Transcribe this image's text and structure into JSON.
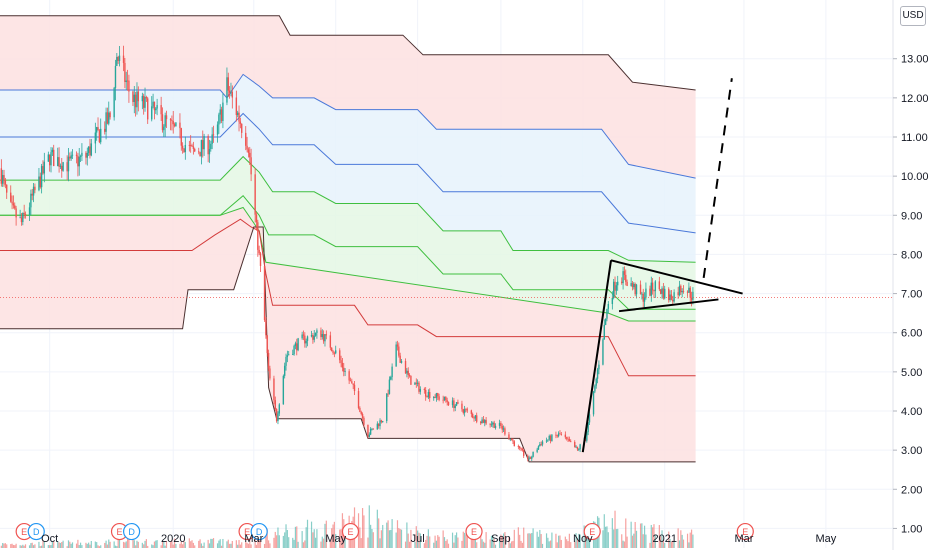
{
  "currency": "USD",
  "colors": {
    "bull": "#26a69a",
    "bear": "#ef5350",
    "band_red_fill": "#fde1e1",
    "band_blue_fill": "#e6f2fc",
    "band_green_fill": "#e4f7e4",
    "line_dark": "#4a2f2f",
    "line_blue": "#4a78d9",
    "line_green": "#3fbf3f",
    "line_red": "#d33b3b",
    "pattern_line": "#000000",
    "current_price_line": "#ef5350",
    "grid": "#f0f3fa"
  },
  "chart_data": {
    "type": "candlestick",
    "title": "",
    "xlabel": "",
    "ylabel": "",
    "y_unit": "USD",
    "ylim": [
      0.5,
      14.5
    ],
    "y_ticks": [
      "1.00",
      "2.00",
      "3.00",
      "4.00",
      "5.00",
      "6.00",
      "7.00",
      "8.00",
      "9.00",
      "10.00",
      "11.00",
      "12.00",
      "13.00"
    ],
    "y_tick_values": [
      1,
      2,
      3,
      4,
      5,
      6,
      7,
      8,
      9,
      10,
      11,
      12,
      13
    ],
    "x_ticks": [
      "Oct",
      "2020",
      "Mar",
      "May",
      "Jul",
      "Sep",
      "Nov",
      "2021",
      "Mar",
      "May"
    ],
    "x_tick_dates": [
      "2019-10-01",
      "2020-01-01",
      "2020-03-01",
      "2020-05-01",
      "2020-07-01",
      "2020-09-01",
      "2020-11-01",
      "2021-01-01",
      "2021-03-01",
      "2021-05-01"
    ],
    "xlim": [
      "2019-08-25",
      "2021-06-20"
    ],
    "price_path": [
      [
        "2019-08-25",
        10.2
      ],
      [
        "2019-09-01",
        9.2
      ],
      [
        "2019-09-10",
        8.8
      ],
      [
        "2019-09-20",
        9.6
      ],
      [
        "2019-10-01",
        10.5
      ],
      [
        "2019-10-15",
        10.3
      ],
      [
        "2019-10-28",
        10.5
      ],
      [
        "2019-11-05",
        11.0
      ],
      [
        "2019-11-15",
        11.5
      ],
      [
        "2019-11-20",
        13.1
      ],
      [
        "2019-12-01",
        12.0
      ],
      [
        "2019-12-15",
        11.7
      ],
      [
        "2020-01-01",
        11.2
      ],
      [
        "2020-01-15",
        10.6
      ],
      [
        "2020-02-01",
        10.9
      ],
      [
        "2020-02-10",
        12.3
      ],
      [
        "2020-02-20",
        11.4
      ],
      [
        "2020-02-26",
        10.8
      ],
      [
        "2020-03-01",
        9.3
      ],
      [
        "2020-03-06",
        7.6
      ],
      [
        "2020-03-12",
        5.0
      ],
      [
        "2020-03-18",
        3.8
      ],
      [
        "2020-03-25",
        5.4
      ],
      [
        "2020-04-05",
        5.8
      ],
      [
        "2020-04-20",
        6.0
      ],
      [
        "2020-05-01",
        5.5
      ],
      [
        "2020-05-15",
        4.5
      ],
      [
        "2020-05-25",
        3.4
      ],
      [
        "2020-06-05",
        3.8
      ],
      [
        "2020-06-15",
        5.6
      ],
      [
        "2020-06-25",
        4.8
      ],
      [
        "2020-07-05",
        4.5
      ],
      [
        "2020-07-20",
        4.3
      ],
      [
        "2020-08-01",
        4.1
      ],
      [
        "2020-08-15",
        3.8
      ],
      [
        "2020-09-01",
        3.6
      ],
      [
        "2020-09-15",
        3.0
      ],
      [
        "2020-09-22",
        2.75
      ],
      [
        "2020-10-01",
        3.2
      ],
      [
        "2020-10-15",
        3.4
      ],
      [
        "2020-10-28",
        3.0
      ],
      [
        "2020-11-03",
        3.3
      ],
      [
        "2020-11-10",
        4.6
      ],
      [
        "2020-11-20",
        6.8
      ],
      [
        "2020-11-28",
        7.5
      ],
      [
        "2020-12-05",
        7.3
      ],
      [
        "2020-12-15",
        6.9
      ],
      [
        "2020-12-25",
        7.2
      ],
      [
        "2021-01-05",
        6.9
      ],
      [
        "2021-01-15",
        7.2
      ],
      [
        "2021-01-24",
        6.85
      ]
    ],
    "volume_path": [
      [
        "2019-08-25",
        0.3
      ],
      [
        "2019-11-20",
        0.45
      ],
      [
        "2020-02-10",
        0.5
      ],
      [
        "2020-03-01",
        0.6
      ],
      [
        "2020-03-15",
        1.1
      ],
      [
        "2020-05-01",
        1.6
      ],
      [
        "2020-05-20",
        2.3
      ],
      [
        "2020-06-10",
        1.7
      ],
      [
        "2020-07-15",
        0.9
      ],
      [
        "2020-09-01",
        0.75
      ],
      [
        "2020-09-22",
        1.2
      ],
      [
        "2020-10-15",
        0.7
      ],
      [
        "2020-11-10",
        1.5
      ],
      [
        "2020-11-20",
        2.0
      ],
      [
        "2020-12-10",
        1.3
      ],
      [
        "2021-01-24",
        0.9
      ]
    ],
    "bands": [
      {
        "name": "",
        "color_key": "line_dark",
        "path": [
          [
            "2019-08-25",
            14.1
          ],
          [
            "2020-03-20",
            14.1
          ],
          [
            "2020-03-28",
            13.6
          ],
          [
            "2020-06-20",
            13.6
          ],
          [
            "2020-07-05",
            13.1
          ],
          [
            "2020-11-20",
            13.1
          ],
          [
            "2020-12-08",
            12.4
          ],
          [
            "2021-01-24",
            12.2
          ]
        ]
      },
      {
        "name": "",
        "color_key": "line_blue",
        "path": [
          [
            "2019-08-25",
            12.2
          ],
          [
            "2020-02-05",
            12.2
          ],
          [
            "2020-02-10",
            12.0
          ],
          [
            "2020-02-22",
            12.6
          ],
          [
            "2020-03-05",
            12.3
          ],
          [
            "2020-03-15",
            12.0
          ],
          [
            "2020-04-15",
            12.0
          ],
          [
            "2020-05-01",
            11.7
          ],
          [
            "2020-07-01",
            11.7
          ],
          [
            "2020-07-15",
            11.2
          ],
          [
            "2020-11-15",
            11.2
          ],
          [
            "2020-12-05",
            10.3
          ],
          [
            "2021-01-24",
            9.95
          ]
        ]
      },
      {
        "name": "",
        "color_key": "line_blue",
        "path": [
          [
            "2019-08-25",
            11.0
          ],
          [
            "2020-02-05",
            11.0
          ],
          [
            "2020-02-22",
            11.6
          ],
          [
            "2020-03-05",
            11.2
          ],
          [
            "2020-03-15",
            10.8
          ],
          [
            "2020-04-15",
            10.8
          ],
          [
            "2020-05-01",
            10.3
          ],
          [
            "2020-07-01",
            10.3
          ],
          [
            "2020-07-20",
            9.6
          ],
          [
            "2020-11-15",
            9.6
          ],
          [
            "2020-12-05",
            8.8
          ],
          [
            "2021-01-24",
            8.55
          ]
        ]
      },
      {
        "name": "",
        "color_key": "line_green",
        "path": [
          [
            "2019-08-25",
            9.9
          ],
          [
            "2020-02-05",
            9.9
          ],
          [
            "2020-02-22",
            10.5
          ],
          [
            "2020-03-05",
            10.1
          ],
          [
            "2020-03-15",
            9.6
          ],
          [
            "2020-04-15",
            9.6
          ],
          [
            "2020-05-01",
            9.3
          ],
          [
            "2020-07-01",
            9.3
          ],
          [
            "2020-07-20",
            8.6
          ],
          [
            "2020-09-01",
            8.6
          ],
          [
            "2020-09-10",
            8.1
          ],
          [
            "2020-11-20",
            8.1
          ],
          [
            "2020-12-05",
            7.85
          ],
          [
            "2021-01-24",
            7.8
          ]
        ]
      },
      {
        "name": "",
        "color_key": "line_green",
        "path": [
          [
            "2019-08-25",
            9.0
          ],
          [
            "2020-02-05",
            9.0
          ],
          [
            "2020-02-22",
            9.5
          ],
          [
            "2020-03-05",
            9.0
          ],
          [
            "2020-03-12",
            8.5
          ],
          [
            "2020-04-15",
            8.5
          ],
          [
            "2020-05-01",
            8.2
          ],
          [
            "2020-07-01",
            8.2
          ],
          [
            "2020-07-20",
            7.5
          ],
          [
            "2020-09-01",
            7.5
          ],
          [
            "2020-09-10",
            7.1
          ],
          [
            "2020-11-20",
            7.1
          ],
          [
            "2020-12-05",
            6.6
          ],
          [
            "2021-01-24",
            6.6
          ]
        ]
      },
      {
        "name": "",
        "color_key": "line_green",
        "path": [
          [
            "2019-08-25",
            9.0
          ],
          [
            "2019-10-01",
            9.0
          ],
          [
            "2020-02-05",
            9.0
          ],
          [
            "2020-02-22",
            9.2
          ],
          [
            "2020-03-05",
            8.6
          ],
          [
            "2020-03-10",
            7.8
          ],
          [
            "2020-11-20",
            6.5
          ],
          [
            "2020-12-05",
            6.3
          ],
          [
            "2021-01-24",
            6.3
          ]
        ]
      },
      {
        "name": "",
        "color_key": "line_red",
        "path": [
          [
            "2019-08-25",
            8.1
          ],
          [
            "2020-01-15",
            8.1
          ],
          [
            "2020-02-01",
            8.5
          ],
          [
            "2020-02-20",
            8.9
          ],
          [
            "2020-02-28",
            8.7
          ],
          [
            "2020-03-05",
            8.6
          ],
          [
            "2020-03-10",
            7.5
          ],
          [
            "2020-03-15",
            6.7
          ],
          [
            "2020-05-15",
            6.7
          ],
          [
            "2020-05-25",
            6.2
          ],
          [
            "2020-07-01",
            6.2
          ],
          [
            "2020-07-15",
            5.9
          ],
          [
            "2020-11-20",
            5.9
          ],
          [
            "2020-12-05",
            4.9
          ],
          [
            "2021-01-24",
            4.9
          ]
        ]
      },
      {
        "name": "",
        "color_key": "line_dark",
        "path": [
          [
            "2019-08-25",
            6.1
          ],
          [
            "2020-01-08",
            6.1
          ],
          [
            "2020-01-12",
            7.1
          ],
          [
            "2020-02-15",
            7.1
          ],
          [
            "2020-03-01",
            8.7
          ],
          [
            "2020-03-08",
            8.7
          ],
          [
            "2020-03-12",
            4.6
          ],
          [
            "2020-03-18",
            3.8
          ],
          [
            "2020-05-20",
            3.8
          ],
          [
            "2020-05-25",
            3.3
          ],
          [
            "2020-09-15",
            3.3
          ],
          [
            "2020-09-22",
            2.7
          ],
          [
            "2021-01-24",
            2.7
          ]
        ]
      }
    ],
    "current_price": 6.9,
    "pattern_lines": [
      {
        "from": [
          "2020-11-01",
          2.95
        ],
        "to": [
          "2020-11-22",
          7.85
        ],
        "style": "solid"
      },
      {
        "from": [
          "2020-11-22",
          7.85
        ],
        "to": [
          "2021-02-28",
          7.0
        ],
        "style": "solid"
      },
      {
        "from": [
          "2020-11-28",
          6.55
        ],
        "to": [
          "2021-02-10",
          6.85
        ],
        "style": "solid"
      },
      {
        "from": [
          "2021-01-30",
          7.4
        ],
        "to": [
          "2021-02-20",
          12.5
        ],
        "style": "dashed"
      }
    ],
    "events": [
      {
        "label": "E",
        "date": "2019-09-12"
      },
      {
        "label": "D",
        "date": "2019-09-21"
      },
      {
        "label": "E",
        "date": "2019-11-22"
      },
      {
        "label": "D",
        "date": "2019-12-01"
      },
      {
        "label": "E",
        "date": "2020-02-25"
      },
      {
        "label": "D",
        "date": "2020-03-05"
      },
      {
        "label": "E",
        "date": "2020-05-12"
      },
      {
        "label": "E",
        "date": "2020-08-12"
      },
      {
        "label": "E",
        "date": "2020-11-08"
      },
      {
        "label": "E",
        "date": "2021-03-02"
      }
    ]
  }
}
